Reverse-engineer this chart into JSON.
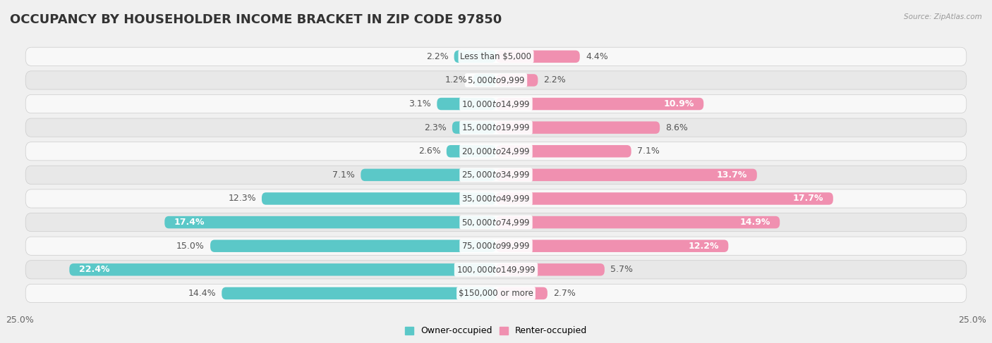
{
  "title": "OCCUPANCY BY HOUSEHOLDER INCOME BRACKET IN ZIP CODE 97850",
  "source": "Source: ZipAtlas.com",
  "categories": [
    "Less than $5,000",
    "$5,000 to $9,999",
    "$10,000 to $14,999",
    "$15,000 to $19,999",
    "$20,000 to $24,999",
    "$25,000 to $34,999",
    "$35,000 to $49,999",
    "$50,000 to $74,999",
    "$75,000 to $99,999",
    "$100,000 to $149,999",
    "$150,000 or more"
  ],
  "owner_values": [
    2.2,
    1.2,
    3.1,
    2.3,
    2.6,
    7.1,
    12.3,
    17.4,
    15.0,
    22.4,
    14.4
  ],
  "renter_values": [
    4.4,
    2.2,
    10.9,
    8.6,
    7.1,
    13.7,
    17.7,
    14.9,
    12.2,
    5.7,
    2.7
  ],
  "owner_color": "#5bc8c8",
  "renter_color": "#f090b0",
  "owner_label": "Owner-occupied",
  "renter_label": "Renter-occupied",
  "axis_limit": 25.0,
  "bg_color": "#f0f0f0",
  "row_bg_color": "#e8e8e8",
  "row_fg_color": "#f8f8f8",
  "title_fontsize": 13,
  "label_fontsize": 9,
  "tick_fontsize": 9,
  "bar_height": 0.52,
  "inside_threshold_owner": 16.0,
  "inside_threshold_renter": 10.0
}
